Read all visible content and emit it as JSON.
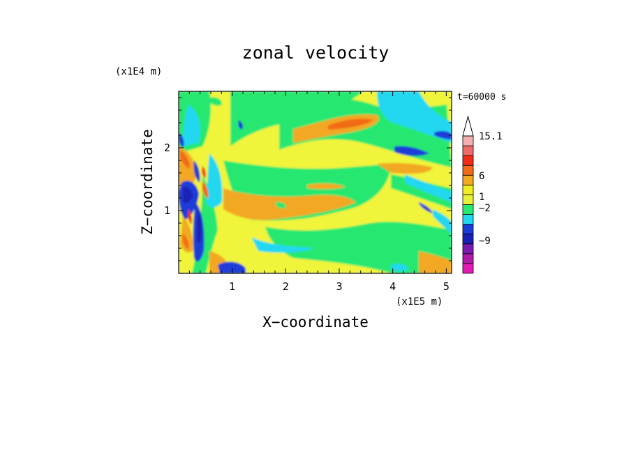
{
  "chart_data": {
    "type": "heatmap",
    "title": "zonal velocity",
    "xlabel": "X−coordinate",
    "ylabel": "Z−coordinate",
    "x_unit": "(x1E5 m)",
    "z_unit": "(x1E4 m)",
    "time_label": "t=60000 s",
    "xlim": [
      0,
      5.1
    ],
    "zlim": [
      0,
      2.9
    ],
    "x_ticks": [
      "1",
      "2",
      "3",
      "4",
      "5"
    ],
    "x_tick_values": [
      1,
      2,
      3,
      4,
      5
    ],
    "z_ticks": [
      "1",
      "2"
    ],
    "z_tick_values": [
      1,
      2
    ],
    "colorbar": {
      "labels": [
        "15.1",
        "6",
        "1",
        "−2",
        "−9"
      ],
      "label_levels": [
        15.1,
        6,
        1,
        -2,
        -9
      ],
      "colors": [
        "#e41ab5",
        "#b01aa6",
        "#7a1ab0",
        "#1a20b4",
        "#1a3cd8",
        "#22d8f0",
        "#28e870",
        "#e8f038",
        "#f0ee22",
        "#f2a820",
        "#f26a18",
        "#f22a1a",
        "#f06a6a",
        "#f4b0b0",
        "#ffffff"
      ]
    },
    "band_colors": {
      "magenta": "#e41ab5",
      "dark_blue": "#1a20b4",
      "blue": "#1a3cd8",
      "cyan": "#22d8f0",
      "green": "#28e870",
      "yellow": "#f0f43a",
      "orange": "#f2a820",
      "red_orange": "#f26a18",
      "red": "#f22a1a"
    }
  }
}
